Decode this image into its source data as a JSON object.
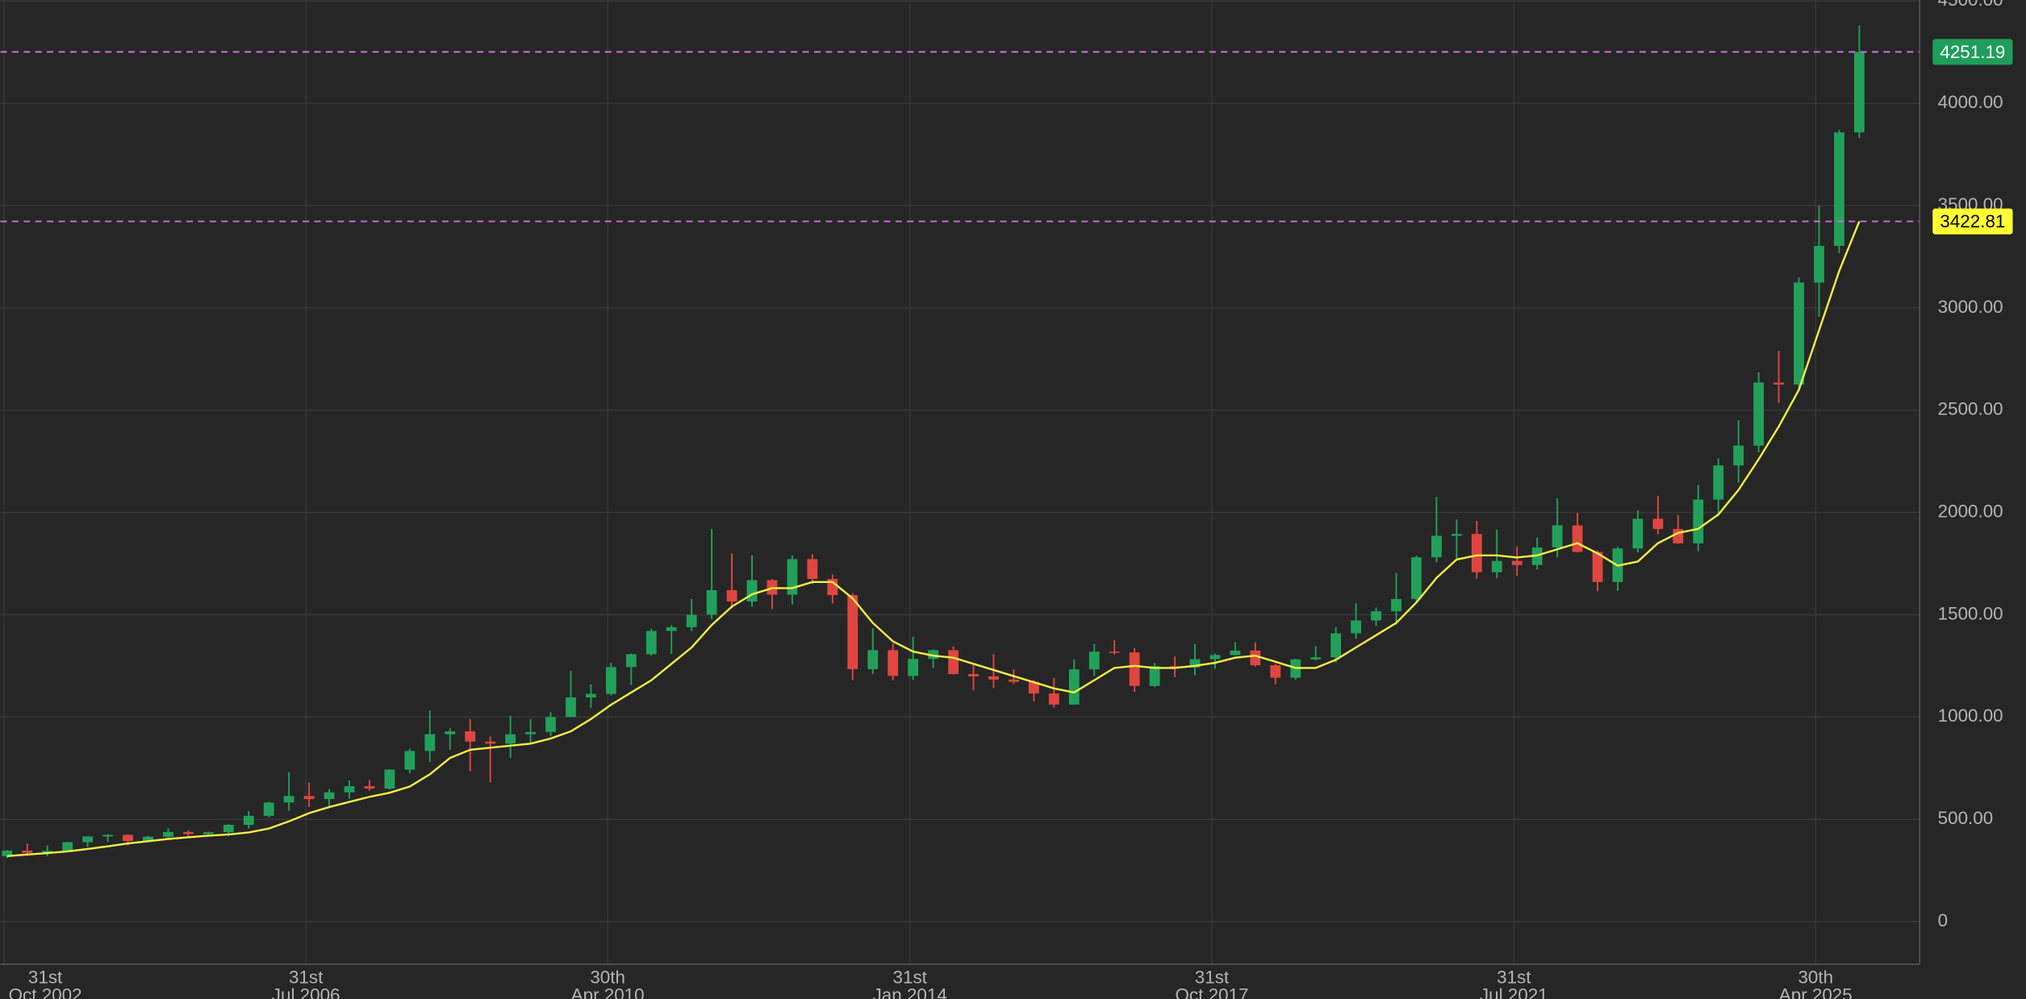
{
  "chart_data": {
    "type": "candlestick",
    "x": [
      "2002-11",
      "2003-02",
      "2003-05",
      "2003-08",
      "2003-11",
      "2004-02",
      "2004-05",
      "2004-08",
      "2004-11",
      "2005-02",
      "2005-05",
      "2005-08",
      "2005-11",
      "2006-02",
      "2006-05",
      "2006-08",
      "2006-11",
      "2007-02",
      "2007-05",
      "2007-08",
      "2007-11",
      "2008-02",
      "2008-05",
      "2008-08",
      "2008-11",
      "2009-02",
      "2009-05",
      "2009-08",
      "2009-11",
      "2010-02",
      "2010-05",
      "2010-08",
      "2010-11",
      "2011-02",
      "2011-05",
      "2011-08",
      "2011-11",
      "2012-02",
      "2012-05",
      "2012-08",
      "2012-11",
      "2013-02",
      "2013-05",
      "2013-08",
      "2013-11",
      "2014-02",
      "2014-05",
      "2014-08",
      "2014-11",
      "2015-02",
      "2015-05",
      "2015-08",
      "2015-11",
      "2016-02",
      "2016-05",
      "2016-08",
      "2016-11",
      "2017-02",
      "2017-05",
      "2017-08",
      "2017-11",
      "2018-02",
      "2018-05",
      "2018-08",
      "2018-11",
      "2019-02",
      "2019-05",
      "2019-08",
      "2019-11",
      "2020-02",
      "2020-05",
      "2020-08",
      "2020-11",
      "2021-02",
      "2021-05",
      "2021-08",
      "2021-11",
      "2022-02",
      "2022-05",
      "2022-08",
      "2022-11",
      "2023-02",
      "2023-05",
      "2023-08",
      "2023-11",
      "2024-02",
      "2024-05",
      "2024-08",
      "2024-11",
      "2025-02",
      "2025-05",
      "2025-08",
      "2025-11"
    ],
    "open": [
      320,
      347,
      336,
      346,
      388,
      416,
      424,
      394,
      415,
      438,
      428,
      437,
      473,
      517,
      582,
      614,
      599,
      632,
      662,
      650,
      743,
      834,
      916,
      930,
      880,
      870,
      916,
      927,
      1000,
      1096,
      1113,
      1244,
      1307,
      1421,
      1439,
      1500,
      1620,
      1565,
      1669,
      1598,
      1772,
      1675,
      1596,
      1234,
      1327,
      1201,
      1284,
      1327,
      1210,
      1199,
      1183,
      1172,
      1115,
      1061,
      1233,
      1320,
      1316,
      1152,
      1249,
      1242,
      1283,
      1303,
      1325,
      1253,
      1192,
      1282,
      1292,
      1409,
      1472,
      1517,
      1577,
      1781,
      1886,
      1895,
      1708,
      1763,
      1743,
      1829,
      1937,
      1807,
      1660,
      1824,
      1969,
      1919,
      1849,
      2063,
      2230,
      2327,
      2635,
      2625,
      3124,
      3303,
      3858
    ],
    "high": [
      350,
      382,
      372,
      390,
      417,
      427,
      427,
      420,
      456,
      446,
      440,
      476,
      540,
      586,
      730,
      680,
      648,
      690,
      692,
      745,
      845,
      1032,
      945,
      990,
      905,
      1006,
      990,
      1024,
      1226,
      1160,
      1265,
      1310,
      1432,
      1448,
      1577,
      1920,
      1800,
      1790,
      1675,
      1790,
      1796,
      1697,
      1605,
      1434,
      1360,
      1392,
      1330,
      1345,
      1255,
      1307,
      1232,
      1180,
      1191,
      1282,
      1358,
      1375,
      1337,
      1264,
      1296,
      1357,
      1310,
      1366,
      1365,
      1260,
      1285,
      1346,
      1439,
      1557,
      1535,
      1704,
      1789,
      2075,
      1965,
      1959,
      1916,
      1834,
      1877,
      2070,
      1998,
      1814,
      1834,
      2010,
      2081,
      1987,
      2135,
      2265,
      2450,
      2685,
      2790,
      3148,
      3500,
      3870,
      4380
    ],
    "low": [
      310,
      320,
      320,
      342,
      365,
      390,
      372,
      387,
      410,
      410,
      414,
      418,
      456,
      510,
      542,
      560,
      560,
      600,
      640,
      645,
      725,
      780,
      840,
      735,
      681,
      800,
      865,
      908,
      1000,
      1045,
      1105,
      1157,
      1300,
      1308,
      1420,
      1480,
      1530,
      1540,
      1527,
      1550,
      1650,
      1555,
      1180,
      1210,
      1180,
      1182,
      1240,
      1208,
      1131,
      1142,
      1162,
      1077,
      1046,
      1061,
      1200,
      1305,
      1123,
      1146,
      1195,
      1204,
      1236,
      1302,
      1246,
      1160,
      1183,
      1276,
      1266,
      1382,
      1445,
      1451,
      1566,
      1757,
      1764,
      1677,
      1678,
      1690,
      1721,
      1780,
      1805,
      1615,
      1617,
      1805,
      1893,
      1847,
      1810,
      1984,
      2146,
      2294,
      2536,
      2596,
      2957,
      3268,
      3830
    ],
    "close": [
      347,
      336,
      346,
      388,
      416,
      424,
      394,
      415,
      438,
      428,
      437,
      473,
      517,
      582,
      614,
      599,
      632,
      662,
      650,
      743,
      834,
      916,
      930,
      880,
      870,
      916,
      927,
      1000,
      1096,
      1113,
      1244,
      1307,
      1421,
      1439,
      1500,
      1620,
      1565,
      1669,
      1598,
      1772,
      1675,
      1596,
      1234,
      1327,
      1201,
      1284,
      1327,
      1210,
      1199,
      1183,
      1172,
      1115,
      1061,
      1233,
      1320,
      1316,
      1152,
      1249,
      1242,
      1283,
      1303,
      1325,
      1253,
      1192,
      1282,
      1292,
      1409,
      1472,
      1517,
      1577,
      1781,
      1886,
      1895,
      1708,
      1763,
      1743,
      1829,
      1937,
      1807,
      1660,
      1824,
      1969,
      1919,
      1849,
      2063,
      2230,
      2327,
      2635,
      2625,
      3124,
      3303,
      3858,
      4251.19
    ],
    "up_color": "#22a05a",
    "down_color": "#e0463f",
    "ma": {
      "color": "#f5f046",
      "values": [
        320,
        328,
        335,
        343,
        355,
        368,
        382,
        393,
        404,
        412,
        420,
        426,
        436,
        455,
        490,
        530,
        560,
        585,
        610,
        630,
        660,
        720,
        800,
        840,
        850,
        860,
        870,
        895,
        930,
        990,
        1060,
        1120,
        1180,
        1260,
        1340,
        1450,
        1540,
        1600,
        1630,
        1630,
        1660,
        1660,
        1580,
        1460,
        1370,
        1320,
        1300,
        1290,
        1260,
        1230,
        1200,
        1170,
        1140,
        1120,
        1180,
        1240,
        1250,
        1240,
        1240,
        1250,
        1265,
        1290,
        1300,
        1270,
        1240,
        1240,
        1280,
        1340,
        1400,
        1460,
        1560,
        1680,
        1770,
        1790,
        1790,
        1780,
        1790,
        1820,
        1850,
        1800,
        1740,
        1760,
        1850,
        1900,
        1920,
        1990,
        2110,
        2260,
        2420,
        2600,
        2890,
        3180,
        3422.81
      ]
    },
    "hlines": [
      {
        "value": 4251.19,
        "label_color": "#1f9d5b",
        "text_color": "#ffffff"
      },
      {
        "value": 3422.81,
        "label_color": "#ffff33",
        "text_color": "#000000"
      }
    ],
    "hline_color": "#d36ee0",
    "ylim": [
      -208,
      4505
    ],
    "yticks": [
      0,
      {
        "value": 500,
        "label": "500.00"
      },
      {
        "value": 1000,
        "label": "1000.00"
      },
      {
        "value": 1500,
        "label": "1500.00"
      },
      {
        "value": 2000,
        "label": "2000.00"
      },
      {
        "value": 2500,
        "label": "2500.00"
      },
      {
        "value": 3000,
        "label": "3000.00"
      },
      {
        "value": 3500,
        "label": "3500.00"
      },
      {
        "value": 4000,
        "label": "4000.00"
      },
      {
        "value": 4500,
        "label": "4500.00"
      }
    ],
    "xlim": [
      "2002-10",
      "2026-08"
    ],
    "xticks": [
      {
        "value": "2002-10-31",
        "label": [
          "31st",
          "Oct 2002"
        ]
      },
      {
        "value": "2006-07-31",
        "label": [
          "31st",
          "Jul 2006"
        ]
      },
      {
        "value": "2010-04-30",
        "label": [
          "30th",
          "Apr 2010"
        ]
      },
      {
        "value": "2014-01-31",
        "label": [
          "31st",
          "Jan 2014"
        ]
      },
      {
        "value": "2017-10-31",
        "label": [
          "31st",
          "Oct 2017"
        ]
      },
      {
        "value": "2021-07-31",
        "label": [
          "31st",
          "Jul 2021"
        ]
      },
      {
        "value": "2025-04-30",
        "label": [
          "30th",
          "Apr 2025"
        ]
      }
    ],
    "grid": true
  }
}
